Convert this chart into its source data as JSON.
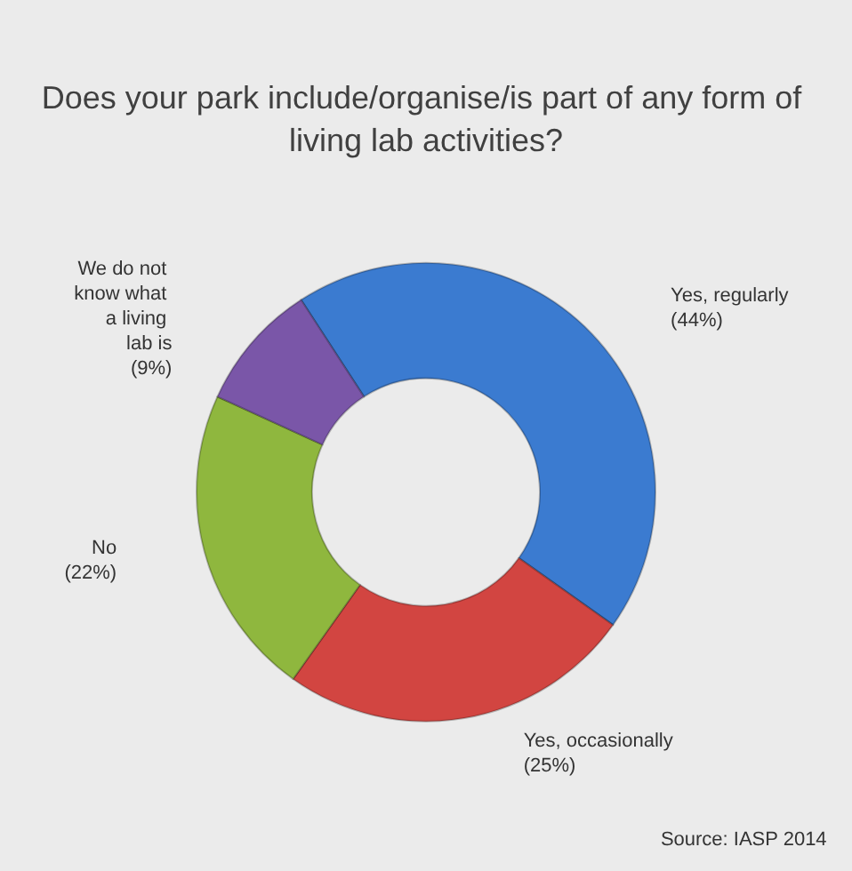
{
  "chart_data": {
    "type": "donut",
    "title": "Does your park include/organise/is part of any form of living lab activities?",
    "categories": [
      "Yes, regularly",
      "Yes, occasionally",
      "No",
      "We do not know what a living lab is"
    ],
    "values": [
      44,
      25,
      22,
      9
    ],
    "value_labels": [
      "(44%)",
      "(25%)",
      "(22%)",
      "(9%)"
    ],
    "colors": [
      "#3b7bd0",
      "#d24541",
      "#8fb73e",
      "#7a56a8"
    ],
    "legend": false,
    "annotations": [
      "Source: IASP 2014"
    ]
  }
}
